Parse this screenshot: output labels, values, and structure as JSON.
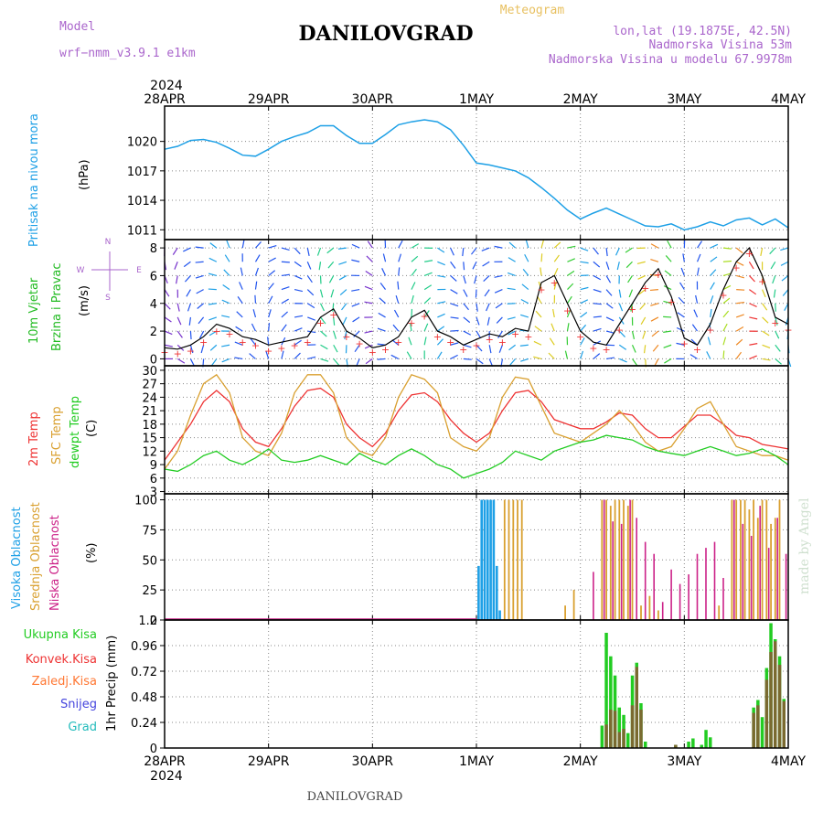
{
  "header": {
    "title": "DANILOVGRAD",
    "meteogram": "Meteogram",
    "model_label": "Model",
    "model_name": "wrf−nmm_v3.9.1  e1km",
    "lonlat": "lon,lat (19.1875E, 42.5N)",
    "altitude": "Nadmorska Visina 53m",
    "model_altitude": "Nadmorska Visina u modelu 67.9978m",
    "footer": "DANILOVGRAD",
    "credit": "made by Angel",
    "year": "2024"
  },
  "colors": {
    "pressure": "#1ea0e6",
    "wind_label": "#22bb22",
    "t2m": "#ee3333",
    "sfc": "#d9a030",
    "dewpt": "#22cc22",
    "high_cloud": "#1ea0e6",
    "mid_cloud": "#d9a030",
    "low_cloud": "#cc2288",
    "total_precip": "#22cc22",
    "conv_precip": "#ee3333",
    "frozen_precip": "#ff7733",
    "snow": "#4444dd",
    "hail": "#22bbbb",
    "meteogram_title": "#e8c060",
    "model_text": "#aa66cc"
  },
  "chart_data": [
    {
      "type": "line",
      "id": "pressure",
      "ylabel_lines": [
        "Pritisak na nivou mora",
        "(hPa)"
      ],
      "yticks": [
        1011,
        1014,
        1017,
        1020
      ],
      "ylim": [
        1010,
        1023.6
      ],
      "x_days": [
        "28APR",
        "29APR",
        "30APR",
        "1MAY",
        "2MAY",
        "3MAY",
        "4MAY"
      ],
      "x_hours": [
        0,
        3,
        6,
        9,
        12,
        15,
        18,
        21,
        24,
        27,
        30,
        33,
        36,
        39,
        42,
        45,
        48,
        51,
        54,
        57,
        60,
        63,
        66,
        69,
        72,
        75,
        78,
        81,
        84,
        87,
        90,
        93,
        96,
        99,
        102,
        105,
        108,
        111,
        114,
        117,
        120,
        123,
        126,
        129,
        132,
        135,
        138,
        141,
        144
      ],
      "values": [
        1019.2,
        1019.5,
        1020.1,
        1020.2,
        1019.9,
        1019.3,
        1018.6,
        1018.5,
        1019.2,
        1020.0,
        1020.5,
        1020.9,
        1021.6,
        1021.6,
        1020.6,
        1019.8,
        1019.8,
        1020.7,
        1021.7,
        1022.0,
        1022.2,
        1022.0,
        1021.2,
        1019.6,
        1017.8,
        1017.6,
        1017.3,
        1017.0,
        1016.3,
        1015.3,
        1014.2,
        1013.0,
        1012.1,
        1012.7,
        1013.2,
        1012.6,
        1012.0,
        1011.4,
        1011.3,
        1011.6,
        1011.0,
        1011.3,
        1011.8,
        1011.4,
        1012.0,
        1012.2,
        1011.5,
        1012.1,
        1011.2
      ]
    },
    {
      "type": "line",
      "id": "wind",
      "ylabel_lines": [
        "10m Vjetar",
        "Brzina i Pravac",
        "(m/s)"
      ],
      "compass": [
        "N",
        "E",
        "W",
        "S"
      ],
      "yticks": [
        0,
        2,
        4,
        6,
        8
      ],
      "ylim": [
        -0.5,
        8.6
      ],
      "x_hours": [
        0,
        3,
        6,
        9,
        12,
        15,
        18,
        21,
        24,
        27,
        30,
        33,
        36,
        39,
        42,
        45,
        48,
        51,
        54,
        57,
        60,
        63,
        66,
        69,
        72,
        75,
        78,
        81,
        84,
        87,
        90,
        93,
        96,
        99,
        102,
        105,
        108,
        111,
        114,
        117,
        120,
        123,
        126,
        129,
        132,
        135,
        138,
        141,
        144
      ],
      "speed": [
        0.8,
        0.7,
        1.0,
        1.6,
        2.5,
        2.2,
        1.6,
        1.4,
        1.0,
        1.2,
        1.4,
        1.6,
        3.0,
        3.6,
        2.0,
        1.5,
        0.8,
        1.0,
        1.6,
        3.0,
        3.5,
        2.0,
        1.6,
        1.0,
        1.4,
        1.8,
        1.6,
        2.2,
        2.0,
        5.5,
        6.0,
        4.0,
        2.0,
        1.2,
        1.0,
        2.5,
        4.0,
        5.5,
        6.5,
        4.5,
        1.5,
        1.0,
        2.5,
        5.0,
        7.0,
        8.0,
        6.0,
        3.0,
        2.5
      ],
      "gust_marks": [
        0.5,
        0.4,
        0.6,
        1.2,
        2.0,
        1.8,
        1.2,
        1.0,
        0.6,
        0.8,
        1.0,
        1.2,
        2.6,
        3.2,
        1.6,
        1.1,
        0.5,
        0.7,
        1.2,
        2.6,
        3.1,
        1.6,
        1.2,
        0.7,
        1.0,
        1.4,
        1.2,
        1.8,
        1.6,
        5.0,
        5.5,
        3.5,
        1.6,
        0.8,
        0.7,
        2.1,
        3.6,
        5.1,
        6.1,
        4.1,
        1.1,
        0.7,
        2.1,
        4.6,
        6.6,
        7.6,
        5.6,
        2.6,
        2.1
      ]
    },
    {
      "type": "line",
      "id": "temperature",
      "ylabel_lines": [
        "2m Temp",
        "SFC Temp",
        "dewpt Temp",
        "(C)"
      ],
      "yticks": [
        3,
        6,
        9,
        12,
        15,
        18,
        21,
        24,
        27,
        30
      ],
      "ylim": [
        2.5,
        31
      ],
      "x_hours": [
        0,
        3,
        6,
        9,
        12,
        15,
        18,
        21,
        24,
        27,
        30,
        33,
        36,
        39,
        42,
        45,
        48,
        51,
        54,
        57,
        60,
        63,
        66,
        69,
        72,
        75,
        78,
        81,
        84,
        87,
        90,
        93,
        96,
        99,
        102,
        105,
        108,
        111,
        114,
        117,
        120,
        123,
        126,
        129,
        132,
        135,
        138,
        141,
        144
      ],
      "series": [
        {
          "name": "2m Temp",
          "values": [
            10.0,
            14.0,
            18.0,
            23.0,
            25.5,
            23.0,
            17.0,
            14.0,
            13.0,
            17.0,
            22.0,
            25.5,
            26.0,
            24.0,
            18.0,
            15.0,
            13.0,
            16.0,
            21.0,
            24.5,
            25.0,
            23.0,
            19.0,
            16.0,
            14.0,
            16.0,
            21.0,
            25.0,
            25.5,
            23.0,
            19.0,
            18.0,
            17.0,
            17.0,
            18.5,
            20.5,
            20.0,
            17.0,
            15.0,
            15.0,
            17.5,
            20.0,
            20.0,
            18.0,
            15.5,
            15.0,
            13.5,
            13.0,
            12.5
          ]
        },
        {
          "name": "SFC Temp",
          "values": [
            8.0,
            12.0,
            20.0,
            27.0,
            29.0,
            25.0,
            15.0,
            12.0,
            11.0,
            16.0,
            25.0,
            29.0,
            29.0,
            25.0,
            15.0,
            12.0,
            11.0,
            15.0,
            24.0,
            29.0,
            28.0,
            25.0,
            15.0,
            13.0,
            12.0,
            15.0,
            24.0,
            28.5,
            28.0,
            22.0,
            16.0,
            15.0,
            14.0,
            16.0,
            18.0,
            21.0,
            18.0,
            14.0,
            12.0,
            13.0,
            17.0,
            21.5,
            23.0,
            18.0,
            13.0,
            12.0,
            11.0,
            11.0,
            10.0
          ]
        },
        {
          "name": "dewpt Temp",
          "values": [
            8.0,
            7.5,
            9.0,
            11.0,
            12.0,
            10.0,
            9.0,
            10.5,
            12.5,
            10.0,
            9.5,
            10.0,
            11.0,
            10.0,
            9.0,
            11.5,
            10.0,
            9.0,
            11.0,
            12.5,
            11.0,
            9.0,
            8.0,
            6.0,
            7.0,
            8.0,
            9.5,
            12.0,
            11.0,
            10.0,
            12.0,
            13.0,
            14.0,
            14.5,
            15.5,
            15.0,
            14.5,
            13.0,
            12.0,
            11.5,
            11.0,
            12.0,
            13.0,
            12.0,
            11.0,
            11.5,
            12.5,
            11.0,
            9.0
          ]
        }
      ]
    },
    {
      "type": "bar",
      "id": "clouds",
      "ylabel_lines": [
        "Visoka Oblacnost",
        "Srednja Oblacnost",
        "Niska Oblacnost",
        "(%)"
      ],
      "yticks": [
        0,
        25,
        50,
        75,
        100
      ],
      "ylim": [
        0,
        105
      ],
      "series": [
        {
          "name": "Visoka Oblacnost",
          "bars": [
            [
              72.5,
              45
            ],
            [
              73.2,
              100
            ],
            [
              73.9,
              100
            ],
            [
              74.6,
              100
            ],
            [
              75.3,
              100
            ],
            [
              76.0,
              100
            ],
            [
              76.7,
              45
            ],
            [
              77.4,
              8
            ]
          ]
        },
        {
          "name": "Srednja Oblacnost",
          "bars": [
            [
              78.5,
              100
            ],
            [
              79.5,
              100
            ],
            [
              80.5,
              100
            ],
            [
              81.5,
              100
            ],
            [
              82.5,
              100
            ],
            [
              92.5,
              12
            ],
            [
              94.5,
              25
            ],
            [
              101.0,
              100
            ],
            [
              102.0,
              100
            ],
            [
              103.0,
              95
            ],
            [
              104.0,
              100
            ],
            [
              105.0,
              100
            ],
            [
              106.0,
              100
            ],
            [
              107.0,
              95
            ],
            [
              108.0,
              100
            ],
            [
              110.0,
              12
            ],
            [
              112.0,
              20
            ],
            [
              114.0,
              8
            ],
            [
              128.0,
              12
            ],
            [
              131.0,
              100
            ],
            [
              132.0,
              100
            ],
            [
              133.0,
              100
            ],
            [
              134.0,
              100
            ],
            [
              135.0,
              92
            ],
            [
              136.0,
              100
            ],
            [
              137.0,
              85
            ],
            [
              138.0,
              100
            ],
            [
              139.0,
              100
            ],
            [
              140.0,
              80
            ],
            [
              141.0,
              85
            ],
            [
              142.0,
              100
            ]
          ]
        },
        {
          "name": "Niska Oblacnost",
          "bars": [
            [
              99.0,
              40
            ],
            [
              101.5,
              100
            ],
            [
              103.5,
              82
            ],
            [
              105.5,
              80
            ],
            [
              107.5,
              100
            ],
            [
              109.0,
              85
            ],
            [
              111.0,
              65
            ],
            [
              113.0,
              55
            ],
            [
              115.0,
              15
            ],
            [
              117.0,
              42
            ],
            [
              119.0,
              30
            ],
            [
              121.0,
              38
            ],
            [
              123.0,
              55
            ],
            [
              125.0,
              60
            ],
            [
              127.0,
              65
            ],
            [
              129.0,
              35
            ],
            [
              131.5,
              100
            ],
            [
              133.5,
              80
            ],
            [
              135.5,
              70
            ],
            [
              137.5,
              95
            ],
            [
              139.5,
              60
            ],
            [
              141.5,
              85
            ],
            [
              143.5,
              55
            ]
          ]
        }
      ]
    },
    {
      "type": "bar",
      "id": "precip",
      "ylabel_lines": [
        "1hr Precip (mm)"
      ],
      "legend": [
        "Ukupna Kisa",
        "Konvek.Kisa",
        "Zaledj.Kisa",
        "Snijeg",
        "Grad"
      ],
      "yticks": [
        0,
        0.24,
        0.48,
        0.72,
        0.96,
        1.2
      ],
      "ylim": [
        0,
        1.2
      ],
      "series": [
        {
          "name": "Ukupna Kisa",
          "bars": [
            [
              101.0,
              0.21
            ],
            [
              102.0,
              1.08
            ],
            [
              103.0,
              0.86
            ],
            [
              104.0,
              0.68
            ],
            [
              105.0,
              0.38
            ],
            [
              106.0,
              0.31
            ],
            [
              107.0,
              0.14
            ],
            [
              108.0,
              0.68
            ],
            [
              109.0,
              0.8
            ],
            [
              110.0,
              0.42
            ],
            [
              111.0,
              0.06
            ],
            [
              118.0,
              0.03
            ],
            [
              121.0,
              0.06
            ],
            [
              122.0,
              0.09
            ],
            [
              124.0,
              0.03
            ],
            [
              125.0,
              0.17
            ],
            [
              126.0,
              0.1
            ],
            [
              136.0,
              0.38
            ],
            [
              137.0,
              0.45
            ],
            [
              138.0,
              0.29
            ],
            [
              139.0,
              0.75
            ],
            [
              140.0,
              1.17
            ],
            [
              141.0,
              1.02
            ],
            [
              142.0,
              0.86
            ],
            [
              143.0,
              0.46
            ]
          ]
        },
        {
          "name": "Konvek.Kisa",
          "bars": [
            [
              102.0,
              0.22
            ],
            [
              103.0,
              0.36
            ],
            [
              104.0,
              0.35
            ],
            [
              105.0,
              0.15
            ],
            [
              106.0,
              0.18
            ],
            [
              108.0,
              0.4
            ],
            [
              109.0,
              0.76
            ],
            [
              110.0,
              0.36
            ],
            [
              118.0,
              0.03
            ],
            [
              136.0,
              0.33
            ],
            [
              137.0,
              0.4
            ],
            [
              139.0,
              0.64
            ],
            [
              140.0,
              0.9
            ],
            [
              141.0,
              1.0
            ],
            [
              142.0,
              0.78
            ],
            [
              143.0,
              0.44
            ]
          ]
        }
      ]
    }
  ]
}
